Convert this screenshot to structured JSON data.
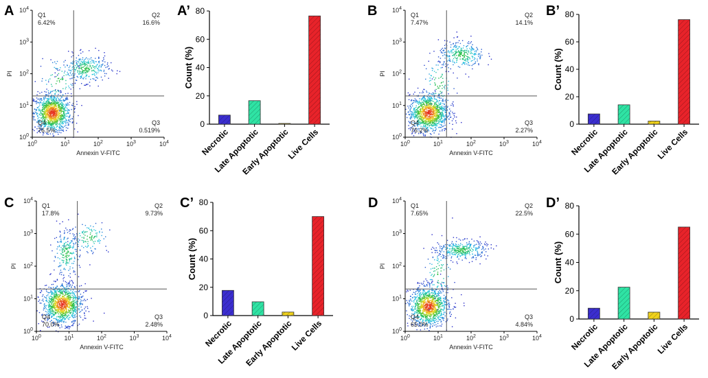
{
  "colors": {
    "necrotic": "#3b2ecf",
    "late_apoptotic": "#2fe3a4",
    "early_apoptotic": "#f0d21c",
    "live_cells": "#e8232a",
    "quadrant_line": "#555555",
    "axis": "#000000"
  },
  "chart_data": [
    {
      "type": "scatter",
      "panel": "A",
      "xlabel": "Annexin V-FITC",
      "ylabel": "PI",
      "x_ticks": [
        "10^0",
        "10^1",
        "10^2",
        "10^3",
        "10^4"
      ],
      "y_ticks": [
        "10^0",
        "10^1",
        "10^2",
        "10^3",
        "10^4"
      ],
      "xlim": [
        1,
        10000
      ],
      "ylim": [
        1,
        10000
      ],
      "quadrant_gate": {
        "x": 18,
        "y": 20
      },
      "quadrants": {
        "Q1": "6.42%",
        "Q2": "16.6%",
        "Q3": "0.519%",
        "Q4": "76.5%"
      },
      "populations": [
        {
          "cx": 4,
          "cy": 6,
          "spread_x": 0.28,
          "spread_y": 0.3,
          "count": 1100
        },
        {
          "cx": 40,
          "cy": 150,
          "spread_x": 0.35,
          "spread_y": 0.22,
          "count": 320
        },
        {
          "cx": 6,
          "cy": 60,
          "spread_x": 0.3,
          "spread_y": 0.4,
          "count": 90
        }
      ]
    },
    {
      "type": "bar",
      "panel": "A’",
      "categories": [
        "Necrotic",
        "Late Apoptotic",
        "Early Apoptotic",
        "Live Cells"
      ],
      "values": [
        6.42,
        16.6,
        0.519,
        76.5
      ],
      "ylabel": "Count (%)",
      "ylim": [
        0,
        80
      ],
      "yticks": [
        0,
        20,
        40,
        60,
        80
      ]
    },
    {
      "type": "scatter",
      "panel": "B",
      "xlabel": "Annexin V-FITC",
      "ylabel": "PI",
      "x_ticks": [
        "10^0",
        "10^1",
        "10^2",
        "10^3",
        "10^4"
      ],
      "y_ticks": [
        "10^0",
        "10^1",
        "10^2",
        "10^3",
        "10^4"
      ],
      "xlim": [
        1,
        10000
      ],
      "ylim": [
        1,
        10000
      ],
      "quadrant_gate": {
        "x": 18,
        "y": 20
      },
      "quadrants": {
        "Q1": "7.47%",
        "Q2": "14.1%",
        "Q3": "2.27%",
        "Q4": "76.2%"
      },
      "populations": [
        {
          "cx": 5,
          "cy": 6,
          "spread_x": 0.3,
          "spread_y": 0.3,
          "count": 1100
        },
        {
          "cx": 50,
          "cy": 400,
          "spread_x": 0.35,
          "spread_y": 0.22,
          "count": 300
        },
        {
          "cx": 10,
          "cy": 50,
          "spread_x": 0.25,
          "spread_y": 0.45,
          "count": 90
        }
      ]
    },
    {
      "type": "bar",
      "panel": "B’",
      "categories": [
        "Necrotic",
        "Late Apoptotic",
        "Early Apoptotic",
        "Live Cells"
      ],
      "values": [
        7.47,
        14.1,
        2.27,
        76.2
      ],
      "ylabel": "Count (%)",
      "ylim": [
        0,
        80
      ],
      "yticks": [
        0,
        20,
        40,
        60,
        80
      ]
    },
    {
      "type": "scatter",
      "panel": "C",
      "xlabel": "Annexin V-FITC",
      "ylabel": "PI",
      "x_ticks": [
        "10^0",
        "10^1",
        "10^2",
        "10^3",
        "10^4"
      ],
      "y_ticks": [
        "10^0",
        "10^1",
        "10^2",
        "10^3",
        "10^4"
      ],
      "xlim": [
        1,
        10000
      ],
      "ylim": [
        1,
        10000
      ],
      "quadrant_gate": {
        "x": 18,
        "y": 20
      },
      "quadrants": {
        "Q1": "17.8%",
        "Q2": "9.73%",
        "Q3": "2.48%",
        "Q4": "70.0%"
      },
      "populations": [
        {
          "cx": 6,
          "cy": 7,
          "spread_x": 0.3,
          "spread_y": 0.3,
          "count": 1100
        },
        {
          "cx": 8,
          "cy": 250,
          "spread_x": 0.2,
          "spread_y": 0.35,
          "count": 220
        },
        {
          "cx": 40,
          "cy": 800,
          "spread_x": 0.3,
          "spread_y": 0.25,
          "count": 120
        }
      ]
    },
    {
      "type": "bar",
      "panel": "C’",
      "categories": [
        "Necrotic",
        "Late Apoptotic",
        "Early Apoptotic",
        "Live Cells"
      ],
      "values": [
        17.8,
        9.73,
        2.48,
        70.0
      ],
      "ylabel": "Count (%)",
      "ylim": [
        0,
        80
      ],
      "yticks": [
        0,
        20,
        40,
        60,
        80
      ]
    },
    {
      "type": "scatter",
      "panel": "D",
      "xlabel": "Annexin V-FITC",
      "ylabel": "PI",
      "x_ticks": [
        "10^0",
        "10^1",
        "10^2",
        "10^3",
        "10^4"
      ],
      "y_ticks": [
        "10^0",
        "10^1",
        "10^2",
        "10^3",
        "10^4"
      ],
      "xlim": [
        1,
        10000
      ],
      "ylim": [
        1,
        10000
      ],
      "quadrant_gate": {
        "x": 18,
        "y": 20
      },
      "quadrants": {
        "Q1": "7.65%",
        "Q2": "22.5%",
        "Q3": "4.84%",
        "Q4": "65.0%"
      },
      "populations": [
        {
          "cx": 5,
          "cy": 6,
          "spread_x": 0.3,
          "spread_y": 0.3,
          "count": 1100
        },
        {
          "cx": 50,
          "cy": 320,
          "spread_x": 0.38,
          "spread_y": 0.15,
          "count": 360
        },
        {
          "cx": 10,
          "cy": 60,
          "spread_x": 0.22,
          "spread_y": 0.4,
          "count": 90
        }
      ]
    },
    {
      "type": "bar",
      "panel": "D’",
      "categories": [
        "Necrotic",
        "Late Apoptotic",
        "Early Apoptotic",
        "Live Cells"
      ],
      "values": [
        7.65,
        22.5,
        4.84,
        65.0
      ],
      "ylabel": "Count (%)",
      "ylim": [
        0,
        80
      ],
      "yticks": [
        0,
        20,
        40,
        60,
        80
      ]
    }
  ]
}
